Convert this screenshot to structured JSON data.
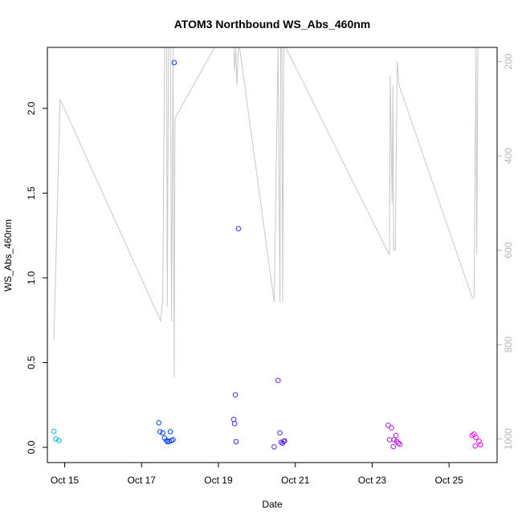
{
  "chart_data": {
    "type": "scatter",
    "title": "ATOM3 Northbound WS_Abs_460nm",
    "xlabel": "Date",
    "ylabel": "WS_Abs_460nm",
    "x_ticks": [
      "Oct 15",
      "Oct 17",
      "Oct 19",
      "Oct 21",
      "Oct 23",
      "Oct 25"
    ],
    "y_ticks": [
      "0.0",
      "0.5",
      "1.0",
      "1.5",
      "2.0"
    ],
    "y2_ticks": [
      "200",
      "400",
      "600",
      "800",
      "1000"
    ],
    "xlim_days": [
      14.55,
      26.25
    ],
    "ylim": [
      -0.09,
      2.36
    ],
    "y2lim_reversed": [
      1050,
      170
    ],
    "grid": false,
    "colors": {
      "line": "#c8c8c8",
      "axis_right_text": "#b8b8b8",
      "point_ramp": [
        "#00bfff",
        "#0044ff",
        "#5a22ee",
        "#a020e0",
        "#ff00ff"
      ]
    },
    "series": [
      {
        "kind": "points",
        "points": [
          [
            14.72,
            0.095
          ],
          [
            14.77,
            0.05
          ],
          [
            14.85,
            0.04
          ],
          [
            17.45,
            0.145
          ],
          [
            17.48,
            0.092
          ],
          [
            17.55,
            0.085
          ],
          [
            17.6,
            0.055
          ],
          [
            17.65,
            0.04
          ],
          [
            17.68,
            0.033
          ],
          [
            17.72,
            0.035
          ],
          [
            17.75,
            0.092
          ],
          [
            17.78,
            0.04
          ],
          [
            17.82,
            0.045
          ],
          [
            17.85,
            2.27
          ],
          [
            19.4,
            0.165
          ],
          [
            19.42,
            0.14
          ],
          [
            19.44,
            0.31
          ],
          [
            19.46,
            0.033
          ],
          [
            19.52,
            1.29
          ],
          [
            20.45,
            0.003
          ],
          [
            20.55,
            0.395
          ],
          [
            20.6,
            0.085
          ],
          [
            20.63,
            0.03
          ],
          [
            20.67,
            0.025
          ],
          [
            20.7,
            0.035
          ],
          [
            20.72,
            0.038
          ],
          [
            23.42,
            0.13
          ],
          [
            23.45,
            0.045
          ],
          [
            23.5,
            0.115
          ],
          [
            23.55,
            0.005
          ],
          [
            23.57,
            0.045
          ],
          [
            23.62,
            0.07
          ],
          [
            23.64,
            0.035
          ],
          [
            23.68,
            0.025
          ],
          [
            23.72,
            0.018
          ],
          [
            25.6,
            0.07
          ],
          [
            25.65,
            0.078
          ],
          [
            25.68,
            0.008
          ],
          [
            25.7,
            0.058
          ],
          [
            25.78,
            0.035
          ],
          [
            25.82,
            0.015
          ]
        ]
      },
      {
        "kind": "line",
        "axis": "right",
        "points": [
          [
            14.72,
            790
          ],
          [
            14.88,
            280
          ],
          [
            17.5,
            750
          ],
          [
            17.55,
            700
          ],
          [
            17.6,
            170
          ],
          [
            17.65,
            170
          ],
          [
            17.67,
            720
          ],
          [
            17.7,
            170
          ],
          [
            17.75,
            170
          ],
          [
            17.78,
            750
          ],
          [
            17.82,
            170
          ],
          [
            17.85,
            870
          ],
          [
            17.87,
            320
          ],
          [
            18.9,
            170
          ],
          [
            19.4,
            170
          ],
          [
            19.42,
            220
          ],
          [
            19.45,
            170
          ],
          [
            19.48,
            250
          ],
          [
            19.52,
            170
          ],
          [
            19.55,
            170
          ],
          [
            20.45,
            710
          ],
          [
            20.55,
            170
          ],
          [
            20.6,
            710
          ],
          [
            20.62,
            170
          ],
          [
            20.65,
            170
          ],
          [
            20.67,
            710
          ],
          [
            20.7,
            170
          ],
          [
            20.75,
            170
          ],
          [
            23.45,
            610
          ],
          [
            23.47,
            230
          ],
          [
            23.52,
            500
          ],
          [
            23.54,
            250
          ],
          [
            23.56,
            600
          ],
          [
            23.6,
            600
          ],
          [
            23.65,
            200
          ],
          [
            23.7,
            250
          ],
          [
            25.6,
            700
          ],
          [
            25.65,
            700
          ],
          [
            25.7,
            170
          ],
          [
            25.72,
            610
          ],
          [
            25.75,
            170
          ],
          [
            25.8,
            170
          ]
        ]
      }
    ]
  }
}
